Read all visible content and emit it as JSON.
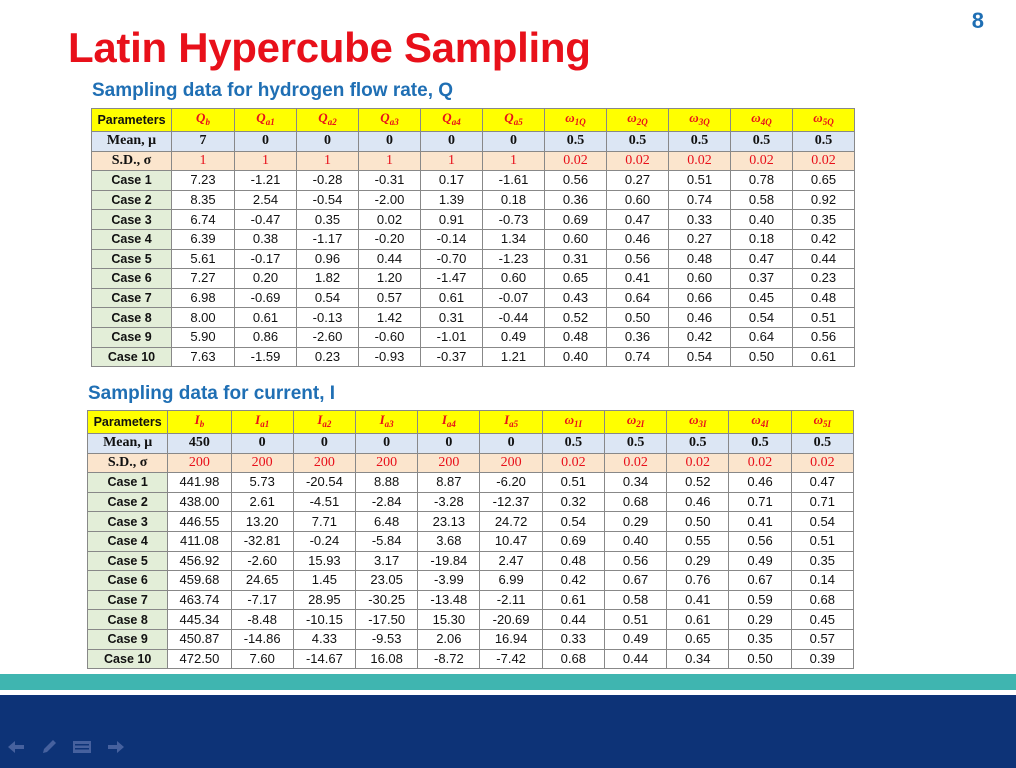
{
  "slide_number": "8",
  "title": "Latin Hypercube Sampling",
  "section_q": {
    "heading": "Sampling data for hydrogen flow rate, Q",
    "param_label": "Parameters",
    "headers": [
      {
        "base": "Q",
        "sub": "b"
      },
      {
        "base": "Q",
        "sub": "a1"
      },
      {
        "base": "Q",
        "sub": "a2"
      },
      {
        "base": "Q",
        "sub": "a3"
      },
      {
        "base": "Q",
        "sub": "a4"
      },
      {
        "base": "Q",
        "sub": "a5"
      },
      {
        "base": "ω",
        "sub": "1Q"
      },
      {
        "base": "ω",
        "sub": "2Q"
      },
      {
        "base": "ω",
        "sub": "3Q"
      },
      {
        "base": "ω",
        "sub": "4Q"
      },
      {
        "base": "ω",
        "sub": "5Q"
      }
    ],
    "mean_label": "Mean, μ",
    "mean": [
      "7",
      "0",
      "0",
      "0",
      "0",
      "0",
      "0.5",
      "0.5",
      "0.5",
      "0.5",
      "0.5"
    ],
    "sd_label": "S.D., σ",
    "sd": [
      "1",
      "1",
      "1",
      "1",
      "1",
      "1",
      "0.02",
      "0.02",
      "0.02",
      "0.02",
      "0.02"
    ],
    "cases": [
      {
        "label": "Case 1",
        "values": [
          "7.23",
          "-1.21",
          "-0.28",
          "-0.31",
          "0.17",
          "-1.61",
          "0.56",
          "0.27",
          "0.51",
          "0.78",
          "0.65"
        ]
      },
      {
        "label": "Case 2",
        "values": [
          "8.35",
          "2.54",
          "-0.54",
          "-2.00",
          "1.39",
          "0.18",
          "0.36",
          "0.60",
          "0.74",
          "0.58",
          "0.92"
        ]
      },
      {
        "label": "Case 3",
        "values": [
          "6.74",
          "-0.47",
          "0.35",
          "0.02",
          "0.91",
          "-0.73",
          "0.69",
          "0.47",
          "0.33",
          "0.40",
          "0.35"
        ]
      },
      {
        "label": "Case 4",
        "values": [
          "6.39",
          "0.38",
          "-1.17",
          "-0.20",
          "-0.14",
          "1.34",
          "0.60",
          "0.46",
          "0.27",
          "0.18",
          "0.42"
        ]
      },
      {
        "label": "Case 5",
        "values": [
          "5.61",
          "-0.17",
          "0.96",
          "0.44",
          "-0.70",
          "-1.23",
          "0.31",
          "0.56",
          "0.48",
          "0.47",
          "0.44"
        ]
      },
      {
        "label": "Case 6",
        "values": [
          "7.27",
          "0.20",
          "1.82",
          "1.20",
          "-1.47",
          "0.60",
          "0.65",
          "0.41",
          "0.60",
          "0.37",
          "0.23"
        ]
      },
      {
        "label": "Case 7",
        "values": [
          "6.98",
          "-0.69",
          "0.54",
          "0.57",
          "0.61",
          "-0.07",
          "0.43",
          "0.64",
          "0.66",
          "0.45",
          "0.48"
        ]
      },
      {
        "label": "Case 8",
        "values": [
          "8.00",
          "0.61",
          "-0.13",
          "1.42",
          "0.31",
          "-0.44",
          "0.52",
          "0.50",
          "0.46",
          "0.54",
          "0.51"
        ]
      },
      {
        "label": "Case 9",
        "values": [
          "5.90",
          "0.86",
          "-2.60",
          "-0.60",
          "-1.01",
          "0.49",
          "0.48",
          "0.36",
          "0.42",
          "0.64",
          "0.56"
        ]
      },
      {
        "label": "Case 10",
        "values": [
          "7.63",
          "-1.59",
          "0.23",
          "-0.93",
          "-0.37",
          "1.21",
          "0.40",
          "0.74",
          "0.54",
          "0.50",
          "0.61"
        ]
      }
    ]
  },
  "section_i": {
    "heading": "Sampling data for current, I",
    "param_label": "Parameters",
    "headers": [
      {
        "base": "I",
        "sub": "b"
      },
      {
        "base": "I",
        "sub": "a1"
      },
      {
        "base": "I",
        "sub": "a2"
      },
      {
        "base": "I",
        "sub": "a3"
      },
      {
        "base": "I",
        "sub": "a4"
      },
      {
        "base": "I",
        "sub": "a5"
      },
      {
        "base": "ω",
        "sub": "1I"
      },
      {
        "base": "ω",
        "sub": "2I"
      },
      {
        "base": "ω",
        "sub": "3I"
      },
      {
        "base": "ω",
        "sub": "4I"
      },
      {
        "base": "ω",
        "sub": "5I"
      }
    ],
    "mean_label": "Mean, μ",
    "mean": [
      "450",
      "0",
      "0",
      "0",
      "0",
      "0",
      "0.5",
      "0.5",
      "0.5",
      "0.5",
      "0.5"
    ],
    "sd_label": "S.D., σ",
    "sd": [
      "200",
      "200",
      "200",
      "200",
      "200",
      "200",
      "0.02",
      "0.02",
      "0.02",
      "0.02",
      "0.02"
    ],
    "cases": [
      {
        "label": "Case 1",
        "values": [
          "441.98",
          "5.73",
          "-20.54",
          "8.88",
          "8.87",
          "-6.20",
          "0.51",
          "0.34",
          "0.52",
          "0.46",
          "0.47"
        ]
      },
      {
        "label": "Case 2",
        "values": [
          "438.00",
          "2.61",
          "-4.51",
          "-2.84",
          "-3.28",
          "-12.37",
          "0.32",
          "0.68",
          "0.46",
          "0.71",
          "0.71"
        ]
      },
      {
        "label": "Case 3",
        "values": [
          "446.55",
          "13.20",
          "7.71",
          "6.48",
          "23.13",
          "24.72",
          "0.54",
          "0.29",
          "0.50",
          "0.41",
          "0.54"
        ]
      },
      {
        "label": "Case 4",
        "values": [
          "411.08",
          "-32.81",
          "-0.24",
          "-5.84",
          "3.68",
          "10.47",
          "0.69",
          "0.40",
          "0.55",
          "0.56",
          "0.51"
        ]
      },
      {
        "label": "Case 5",
        "values": [
          "456.92",
          "-2.60",
          "15.93",
          "3.17",
          "-19.84",
          "2.47",
          "0.48",
          "0.56",
          "0.29",
          "0.49",
          "0.35"
        ]
      },
      {
        "label": "Case 6",
        "values": [
          "459.68",
          "24.65",
          "1.45",
          "23.05",
          "-3.99",
          "6.99",
          "0.42",
          "0.67",
          "0.76",
          "0.67",
          "0.14"
        ]
      },
      {
        "label": "Case 7",
        "values": [
          "463.74",
          "-7.17",
          "28.95",
          "-30.25",
          "-13.48",
          "-2.11",
          "0.61",
          "0.58",
          "0.41",
          "0.59",
          "0.68"
        ]
      },
      {
        "label": "Case 8",
        "values": [
          "445.34",
          "-8.48",
          "-10.15",
          "-17.50",
          "15.30",
          "-20.69",
          "0.44",
          "0.51",
          "0.61",
          "0.29",
          "0.45"
        ]
      },
      {
        "label": "Case 9",
        "values": [
          "450.87",
          "-14.86",
          "4.33",
          "-9.53",
          "2.06",
          "16.94",
          "0.33",
          "0.49",
          "0.65",
          "0.35",
          "0.57"
        ]
      },
      {
        "label": "Case 10",
        "values": [
          "472.50",
          "7.60",
          "-14.67",
          "16.08",
          "-8.72",
          "-7.42",
          "0.68",
          "0.44",
          "0.34",
          "0.50",
          "0.39"
        ]
      }
    ]
  },
  "nav_icons": [
    "arrow-left-icon",
    "pen-icon",
    "menu-icon",
    "arrow-right-icon"
  ],
  "colors": {
    "title": "#e8101a",
    "heading": "#1f6fb4",
    "header_fill": "#ffff00",
    "mean_fill": "#dce6f4",
    "sd_fill": "#fbe5cd",
    "case_label_fill": "#e3eed8",
    "teal_band": "#3fb5b0",
    "navy_band": "#0d3377"
  }
}
